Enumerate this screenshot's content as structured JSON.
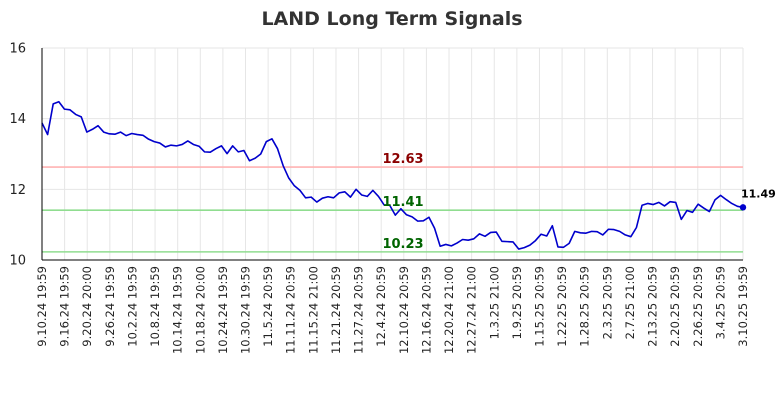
{
  "chart_data": {
    "type": "line",
    "title": "LAND Long Term Signals",
    "xlabel": "",
    "ylabel": "",
    "ylim": [
      10,
      16
    ],
    "y_ticks": [
      10,
      12,
      14,
      16
    ],
    "grid": true,
    "x_tick_labels": [
      "9.10.24 19:59",
      "9.16.24 19:59",
      "9.20.24 20:00",
      "9.26.24 19:59",
      "10.2.24 19:59",
      "10.8.24 19:59",
      "10.14.24 19:59",
      "10.18.24 20:00",
      "10.24.24 19:59",
      "10.30.24 19:59",
      "11.5.24 20:59",
      "11.11.24 20:59",
      "11.15.24 21:00",
      "11.21.24 20:59",
      "11.27.24 20:59",
      "12.4.24 20:59",
      "12.10.24 20:59",
      "12.16.24 20:59",
      "12.20.24 21:00",
      "12.27.24 21:00",
      "1.3.25 21:00",
      "1.9.25 20:59",
      "1.15.25 20:59",
      "1.22.25 20:59",
      "1.28.25 20:59",
      "2.3.25 20:59",
      "2.7.25 21:00",
      "2.13.25 20:59",
      "2.20.25 20:59",
      "2.26.25 20:59",
      "3.4.25 20:59",
      "3.10.25 19:59"
    ],
    "reference_lines": [
      {
        "value": 12.63,
        "label": "12.63",
        "color": "#ffb3b3",
        "label_color": "#8b0000"
      },
      {
        "value": 11.41,
        "label": "11.41",
        "color": "#90dd90",
        "label_color": "#006400"
      },
      {
        "value": 10.23,
        "label": "10.23",
        "color": "#90dd90",
        "label_color": "#006400"
      }
    ],
    "series": [
      {
        "color": "#0000cc",
        "last_label": "11.49",
        "values": [
          13.88,
          13.55,
          14.42,
          14.48,
          14.27,
          14.25,
          14.12,
          14.05,
          13.62,
          13.7,
          13.8,
          13.62,
          13.57,
          13.56,
          13.62,
          13.52,
          13.58,
          13.55,
          13.53,
          13.42,
          13.35,
          13.31,
          13.2,
          13.25,
          13.23,
          13.27,
          13.37,
          13.27,
          13.22,
          13.06,
          13.05,
          13.15,
          13.23,
          13.01,
          13.23,
          13.06,
          13.1,
          12.81,
          12.88,
          13.0,
          13.35,
          13.43,
          13.15,
          12.67,
          12.32,
          12.1,
          11.97,
          11.76,
          11.78,
          11.64,
          11.75,
          11.79,
          11.76,
          11.9,
          11.93,
          11.78,
          12.0,
          11.84,
          11.8,
          11.97,
          11.8,
          11.56,
          11.55,
          11.27,
          11.45,
          11.28,
          11.22,
          11.1,
          11.11,
          11.21,
          10.9,
          10.39,
          10.44,
          10.4,
          10.48,
          10.58,
          10.56,
          10.6,
          10.74,
          10.67,
          10.78,
          10.79,
          10.53,
          10.52,
          10.51,
          10.31,
          10.35,
          10.42,
          10.55,
          10.73,
          10.68,
          10.97,
          10.37,
          10.36,
          10.47,
          10.81,
          10.77,
          10.76,
          10.81,
          10.8,
          10.71,
          10.87,
          10.86,
          10.81,
          10.71,
          10.66,
          10.92,
          11.55,
          11.6,
          11.57,
          11.63,
          11.53,
          11.65,
          11.63,
          11.15,
          11.4,
          11.35,
          11.58,
          11.47,
          11.37,
          11.7,
          11.83,
          11.71,
          11.6,
          11.52,
          11.49
        ]
      }
    ]
  }
}
